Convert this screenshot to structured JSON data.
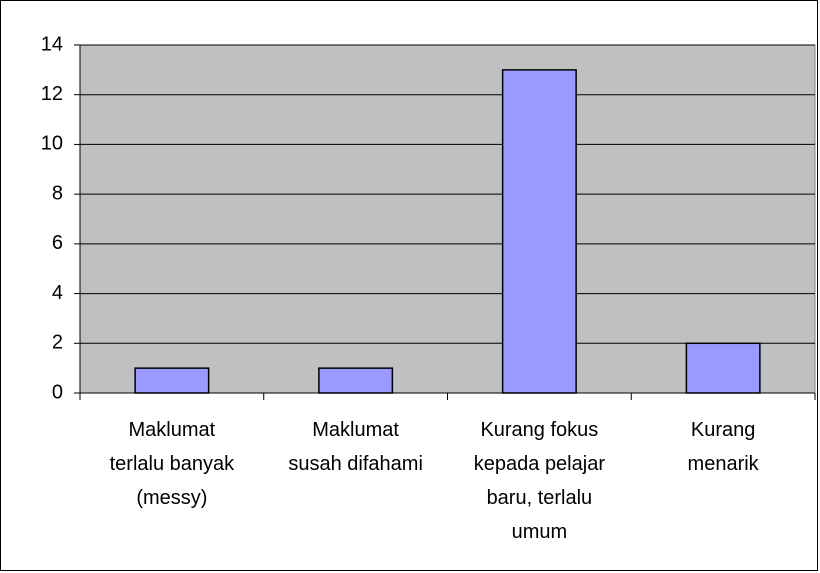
{
  "chart_data": {
    "type": "bar",
    "categories": [
      "Maklumat\nterlalu banyak\n(messy)",
      "Maklumat\nsusah difahami",
      "Kurang fokus\nkepada pelajar\nbaru, terlalu\numum",
      "Kurang\nmenarik"
    ],
    "values": [
      1,
      1,
      13,
      2
    ],
    "color": "#9999ff",
    "ylim": [
      0,
      14
    ],
    "yticks": [
      0,
      2,
      4,
      6,
      8,
      10,
      12,
      14
    ],
    "grid": true
  }
}
